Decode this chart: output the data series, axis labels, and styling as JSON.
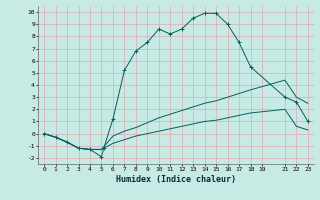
{
  "xlabel": "Humidex (Indice chaleur)",
  "ylabel": "",
  "bg_color": "#c8eae4",
  "grid_color": "#e0a8b0",
  "line_color": "#006060",
  "xlim": [
    -0.5,
    23.5
  ],
  "ylim": [
    -2.5,
    10.5
  ],
  "xticks": [
    0,
    1,
    2,
    3,
    4,
    5,
    6,
    7,
    8,
    9,
    10,
    11,
    12,
    13,
    14,
    15,
    16,
    17,
    18,
    19,
    21,
    22,
    23
  ],
  "yticks": [
    -2,
    -1,
    0,
    1,
    2,
    3,
    4,
    5,
    6,
    7,
    8,
    9,
    10
  ],
  "line1_x": [
    0,
    1,
    2,
    3,
    4,
    5,
    5.2,
    6,
    7,
    8,
    9,
    10,
    11,
    12,
    13,
    14,
    15,
    16,
    17,
    18,
    21,
    22,
    23
  ],
  "line1_y": [
    0,
    -0.3,
    -0.7,
    -1.2,
    -1.3,
    -1.9,
    -1.2,
    1.2,
    5.2,
    6.8,
    7.5,
    8.6,
    8.2,
    8.6,
    9.5,
    9.9,
    9.9,
    9.0,
    7.5,
    5.5,
    3.0,
    2.6,
    1.0
  ],
  "line2_x": [
    0,
    1,
    2,
    3,
    4,
    5,
    6,
    7,
    8,
    9,
    10,
    11,
    12,
    13,
    14,
    15,
    16,
    17,
    18,
    21,
    22,
    23
  ],
  "line2_y": [
    0,
    -0.3,
    -0.7,
    -1.2,
    -1.3,
    -1.3,
    -0.2,
    0.2,
    0.5,
    0.9,
    1.3,
    1.6,
    1.9,
    2.2,
    2.5,
    2.7,
    3.0,
    3.3,
    3.6,
    4.4,
    3.0,
    2.5
  ],
  "line3_x": [
    0,
    1,
    2,
    3,
    4,
    5,
    6,
    7,
    8,
    9,
    10,
    11,
    12,
    13,
    14,
    15,
    16,
    17,
    18,
    21,
    22,
    23
  ],
  "line3_y": [
    0,
    -0.3,
    -0.7,
    -1.2,
    -1.3,
    -1.3,
    -0.8,
    -0.5,
    -0.2,
    0.0,
    0.2,
    0.4,
    0.6,
    0.8,
    1.0,
    1.1,
    1.3,
    1.5,
    1.7,
    2.0,
    0.6,
    0.3
  ]
}
